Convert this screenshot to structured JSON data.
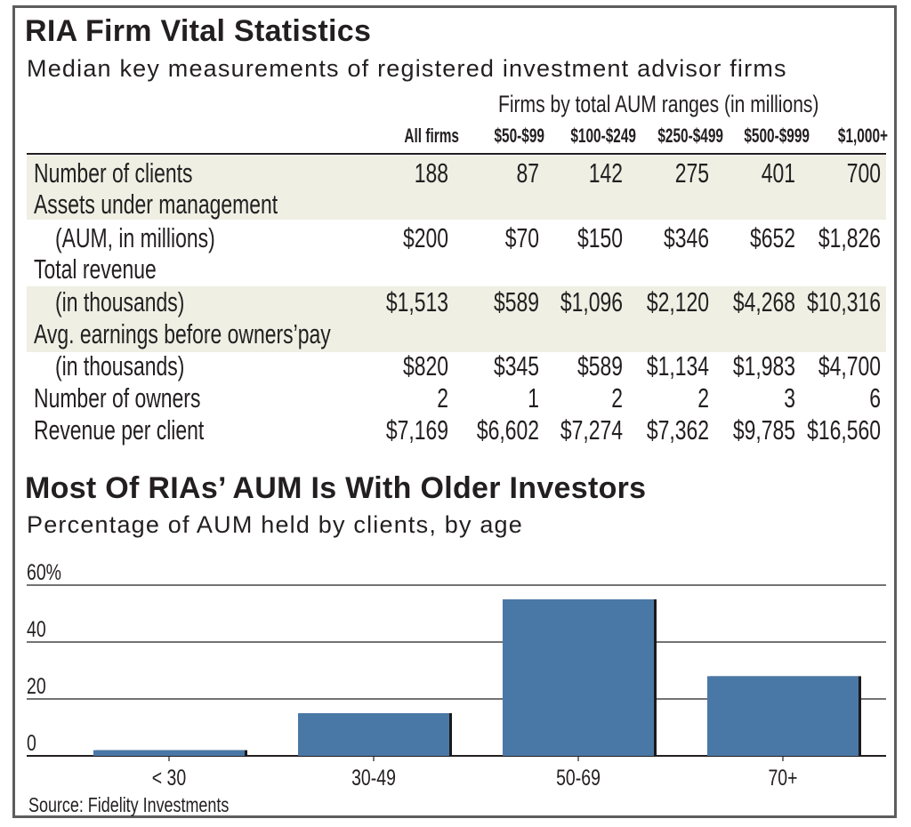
{
  "table": {
    "title": "RIA Firm Vital Statistics",
    "subtitle": "Median key measurements of registered investment advisor firms",
    "group_header": "Firms by total AUM ranges (in millions)",
    "columns": [
      "All firms",
      "$50-$99",
      "$100-$249",
      "$250-$499",
      "$500-$999",
      "$1,000+"
    ],
    "rows": [
      {
        "label": [
          "Number of clients"
        ],
        "values": [
          "188",
          "87",
          "142",
          "275",
          "401",
          "700"
        ]
      },
      {
        "label": [
          "Assets under management",
          "(AUM, in millions)"
        ],
        "values": [
          "$200",
          "$70",
          "$150",
          "$346",
          "$652",
          "$1,826"
        ]
      },
      {
        "label": [
          "Total revenue",
          "(in thousands)"
        ],
        "values": [
          "$1,513",
          "$589",
          "$1,096",
          "$2,120",
          "$4,268",
          "$10,316"
        ]
      },
      {
        "label": [
          "Avg. earnings before owners’pay",
          "(in thousands)"
        ],
        "values": [
          "$820",
          "$345",
          "$589",
          "$1,134",
          "$1,983",
          "$4,700"
        ]
      },
      {
        "label": [
          "Number of owners"
        ],
        "values": [
          "2",
          "1",
          "2",
          "2",
          "3",
          "6"
        ]
      },
      {
        "label": [
          "Revenue per client"
        ],
        "values": [
          "$7,169",
          "$6,602",
          "$7,274",
          "$7,362",
          "$9,785",
          "$16,560"
        ]
      }
    ]
  },
  "chart_data": {
    "type": "bar",
    "title": "Most Of RIAs’ AUM Is With Older Investors",
    "subtitle": "Percentage of AUM held by clients, by age",
    "categories": [
      "< 30",
      "30-49",
      "50-69",
      "70+"
    ],
    "values": [
      2,
      15,
      55,
      28
    ],
    "ylim": [
      0,
      60
    ],
    "yticks": [
      "60%",
      "40",
      "20",
      "0"
    ],
    "ytick_values": [
      60,
      40,
      20,
      0
    ],
    "grid": true,
    "bar_color": "#4a78a6",
    "source": "Source: Fidelity Investments"
  }
}
